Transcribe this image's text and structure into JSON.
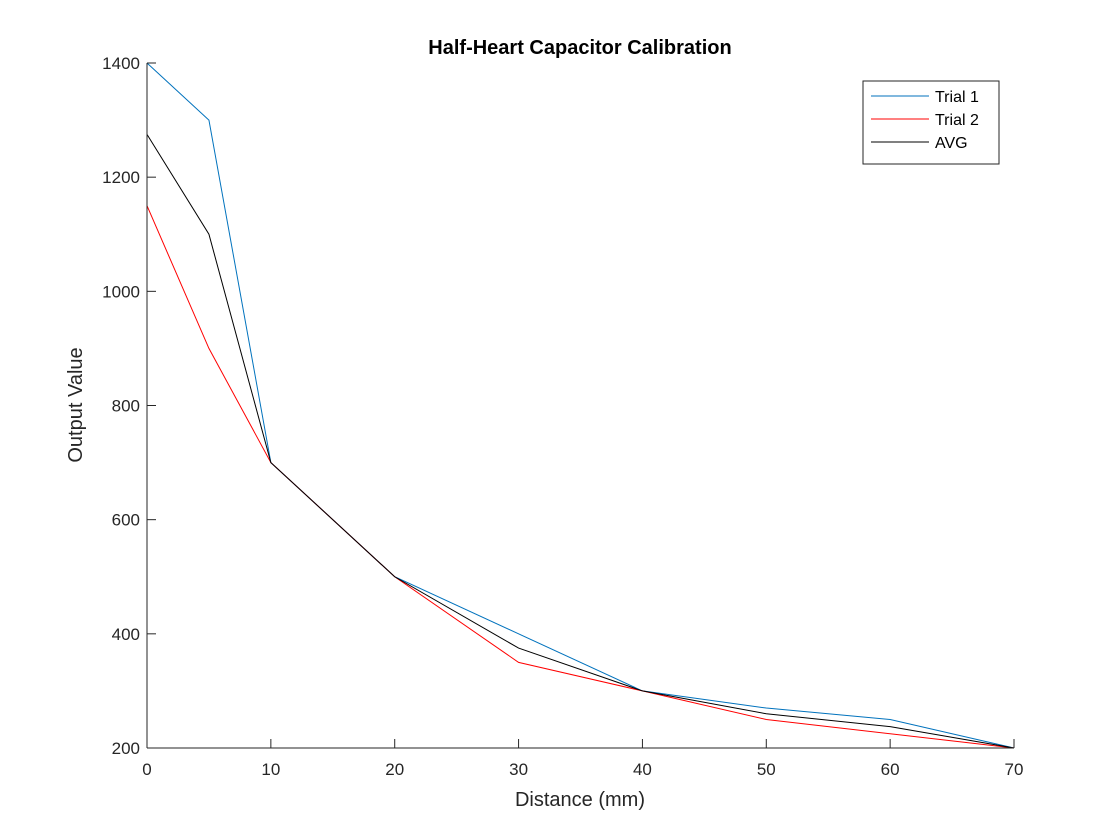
{
  "chart_data": {
    "type": "line",
    "title": "Half-Heart Capacitor Calibration",
    "xlabel": "Distance (mm)",
    "ylabel": "Output Value",
    "xlim": [
      0,
      70
    ],
    "ylim": [
      200,
      1400
    ],
    "xticks": [
      0,
      10,
      20,
      30,
      40,
      50,
      60,
      70
    ],
    "yticks": [
      200,
      400,
      600,
      800,
      1000,
      1200,
      1400
    ],
    "xtick_labels": [
      "0",
      "10",
      "20",
      "30",
      "40",
      "50",
      "60",
      "70"
    ],
    "ytick_labels": [
      "200",
      "400",
      "600",
      "800",
      "1000",
      "1200",
      "1400"
    ],
    "x": [
      0,
      5,
      10,
      20,
      30,
      40,
      50,
      60,
      70
    ],
    "series": [
      {
        "name": "Trial 1",
        "color": "#0072bd",
        "values": [
          1400,
          1300,
          700,
          500,
          400,
          300,
          270,
          250,
          200
        ]
      },
      {
        "name": " Trial 2",
        "color": "#ff0000",
        "values": [
          1150,
          900,
          700,
          500,
          350,
          300,
          250,
          225,
          200
        ]
      },
      {
        "name": "AVG",
        "color": "#000000",
        "values": [
          1275,
          1100,
          700,
          500,
          375,
          300,
          260,
          237.5,
          200
        ]
      }
    ],
    "grid": false,
    "legend": "top-right"
  }
}
